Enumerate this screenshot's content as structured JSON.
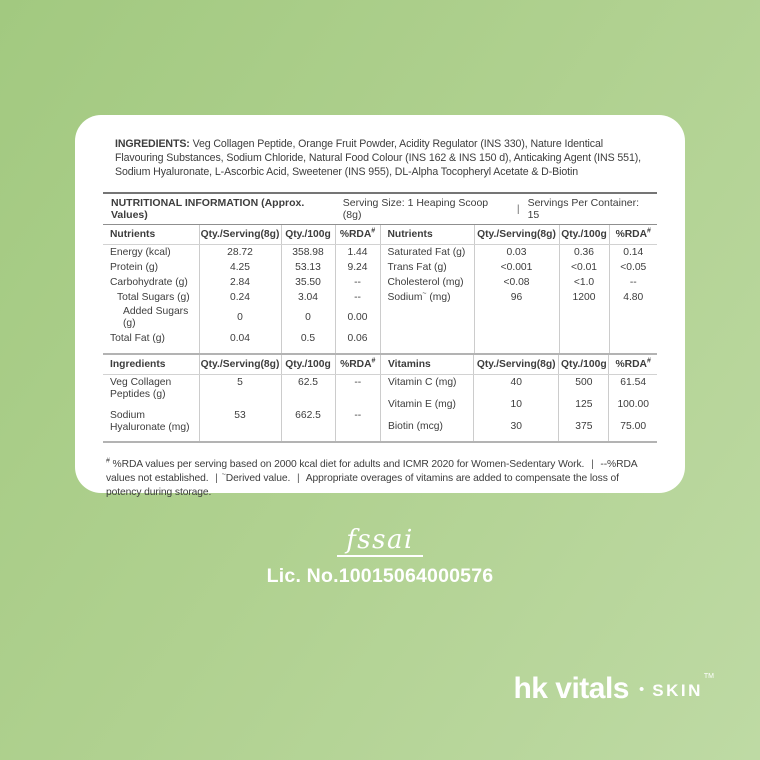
{
  "colors": {
    "background_top": "#a2c980",
    "background_bottom": "#bedaa4",
    "card": "#ffffff",
    "text": "#3d3d3d",
    "logo_text": "#ffffff"
  },
  "ingredients": {
    "label": "INGREDIENTS:",
    "text": " Veg Collagen Peptide, Orange Fruit Powder, Acidity Regulator (INS 330), Nature Identical Flavouring Substances, Sodium Chloride, Natural Food Colour (INS 162 & INS 150 d), Anticaking Agent (INS 551), Sodium Hyaluronate, L-Ascorbic Acid, Sweetener (INS 955), DL-Alpha Tocopheryl Acetate & D-Biotin"
  },
  "table": {
    "title": "NUTRITIONAL INFORMATION (Approx. Values)",
    "serving_size": "Serving Size: 1 Heaping Scoop (8g)",
    "servings_per_container": "Servings Per Container: 15",
    "divider": "|",
    "cols": {
      "serving": "Qty./Serving(8g)",
      "per100": "Qty./100g",
      "rda": "%RDA",
      "rda_sup": "#"
    },
    "section1": {
      "left_header": "Nutrients",
      "right_header": "Nutrients",
      "rows": [
        [
          {
            "label": "Energy (kcal)",
            "values": [
              "28.72",
              "358.98",
              "1.44"
            ]
          },
          {
            "label": "Saturated Fat (g)",
            "values": [
              "0.03",
              "0.36",
              "0.14"
            ]
          }
        ],
        [
          {
            "label": "Protein (g)",
            "values": [
              "4.25",
              "53.13",
              "9.24"
            ]
          },
          {
            "label": "Trans Fat (g)",
            "values": [
              "<0.001",
              "<0.01",
              "<0.05"
            ]
          }
        ],
        [
          {
            "label": "Carbohydrate (g)",
            "values": [
              "2.84",
              "35.50",
              "--"
            ]
          },
          {
            "label": "Cholesterol (mg)",
            "values": [
              "<0.08",
              "<1.0",
              "--"
            ]
          }
        ],
        [
          {
            "label": "Total Sugars (g)",
            "indent": 1,
            "values": [
              "0.24",
              "3.04",
              "--"
            ]
          },
          {
            "label": "Sodium",
            "sup": "~",
            "after": " (mg)",
            "values": [
              "96",
              "1200",
              "4.80"
            ]
          }
        ],
        [
          {
            "label": "Added Sugars (g)",
            "indent": 2,
            "values": [
              "0",
              "0",
              "0.00"
            ]
          },
          null
        ],
        [
          {
            "label": "Total Fat (g)",
            "values": [
              "0.04",
              "0.5",
              "0.06"
            ]
          },
          null
        ]
      ]
    },
    "section2": {
      "left_header": "Ingredients",
      "right_header": "Vitamins",
      "left_rows": [
        {
          "label": "Veg Collagen\nPeptides (g)",
          "values": [
            "5",
            "62.5",
            "--"
          ]
        },
        {
          "label": "Sodium\nHyaluronate (mg)",
          "values": [
            "53",
            "662.5",
            "--"
          ]
        }
      ],
      "right_rows": [
        {
          "label": "Vitamin C  (mg)",
          "values": [
            "40",
            "500",
            "61.54"
          ]
        },
        {
          "label": "Vitamin E  (mg)",
          "values": [
            "10",
            "125",
            "100.00"
          ]
        },
        {
          "label": "Biotin  (mcg)",
          "values": [
            "30",
            "375",
            "75.00"
          ]
        }
      ]
    }
  },
  "footnote": {
    "separator": "|",
    "parts": [
      {
        "sup": "#",
        "text": " %RDA values per serving based on 2000 kcal diet for adults and ICMR 2020 for Women-Sedentary Work. "
      },
      {
        "text": " --%RDA values not established. "
      },
      {
        "sup": "~",
        "text": "Derived value. "
      },
      {
        "text": " Appropriate overages of vitamins are added to compensate the loss of potency during storage."
      }
    ]
  },
  "fssai": {
    "logo": "fssai",
    "license": "Lic. No.10015064000576"
  },
  "brand": {
    "name": "hk vitals",
    "separator": "•",
    "sub": "SKIN",
    "tm": "TM"
  }
}
